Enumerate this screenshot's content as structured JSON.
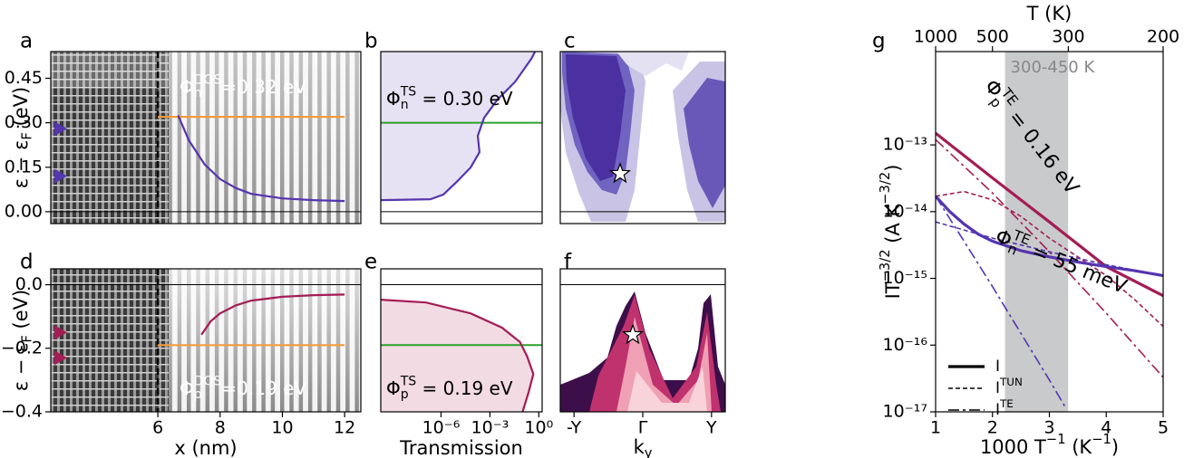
{
  "chart_data": [
    {
      "type": "line",
      "panel_label": "a",
      "ylabel": [
        {
          "text": "ε − ε"
        },
        {
          "sub": "F"
        },
        {
          "text": " (eV)"
        }
      ],
      "xlim": [
        2.56,
        12.52
      ],
      "ylim": [
        -0.04,
        0.54
      ],
      "yticks": [
        {
          "value": 0,
          "label": "0.00"
        },
        0.15,
        {
          "value": 0.3,
          "label": "0.30"
        },
        0.45
      ],
      "zero_line": 0,
      "vline": 6,
      "markers": [
        0.28,
        0.12
      ],
      "marker_color": "#5535b0",
      "series": [
        {
          "color": "#f39c3c",
          "dash": "solid",
          "x": [
            6,
            12
          ],
          "values": [
            0.32,
            0.32
          ]
        },
        {
          "color": "#5535b0",
          "dash": "solid",
          "x": [
            6.65,
            7,
            7.5,
            8,
            8.5,
            9,
            10,
            11,
            12
          ],
          "values": [
            0.325,
            0.24,
            0.16,
            0.11,
            0.08,
            0.06,
            0.045,
            0.039,
            0.036
          ]
        }
      ],
      "annotations": [
        [
          {
            "text": "Φ"
          },
          {
            "sub": "n"
          },
          {
            "sup": "DOS"
          },
          {
            "text": "=0.32 eV"
          }
        ]
      ]
    },
    {
      "type": "area",
      "panel_label": "b",
      "xlog": true,
      "xlim": [
        2e-10,
        1.6
      ],
      "ylim": [
        -0.04,
        0.54
      ],
      "zero_line": 0,
      "hline": 0.3,
      "hline_color": "#2ca02c",
      "fill_color": "#e6e2f3",
      "series": [
        {
          "color": "#5535b0",
          "dash": "solid",
          "x": [
            2e-10,
            2.2e-07,
            1.4e-06,
            1e-05,
            6.5e-05,
            0.00023,
            0.00018,
            0.00044,
            0.0029,
            0.036,
            0.35,
            0.59
          ],
          "values": [
            0.039,
            0.042,
            0.058,
            0.103,
            0.149,
            0.201,
            0.256,
            0.317,
            0.378,
            0.439,
            0.516,
            0.54
          ]
        }
      ],
      "annotations": [
        [
          {
            "text": "Φ"
          },
          {
            "sub": "n"
          },
          {
            "sup": "TS"
          },
          {
            "text": " = 0.30 eV"
          }
        ]
      ]
    },
    {
      "type": "heatmap",
      "panel_label": "c",
      "xlim": [
        -1.2,
        1.2
      ],
      "ylim": [
        -0.04,
        0.54
      ],
      "zero_line": 0,
      "points": {
        "x": [
          -0.33
        ],
        "values": [
          0.128
        ]
      }
    },
    {
      "type": "line",
      "panel_label": "d",
      "ylabel": [
        {
          "text": "ε − ε"
        },
        {
          "sub": "F"
        },
        {
          "text": " (eV)"
        }
      ],
      "xlabel": "x (nm)",
      "xlim": [
        2.56,
        12.52
      ],
      "ylim": [
        -0.4,
        0.05
      ],
      "xticks": [
        6,
        8,
        10,
        12
      ],
      "yticks": [
        {
          "value": 0,
          "label": "0.0"
        },
        {
          "value": -0.2,
          "label": "−0.2"
        },
        {
          "value": -0.4,
          "label": "−0.4"
        }
      ],
      "zero_line": 0,
      "vline": 6,
      "markers": [
        -0.15,
        -0.23
      ],
      "marker_color": "#a41c55",
      "series": [
        {
          "color": "#f39c3c",
          "dash": "solid",
          "x": [
            6,
            12
          ],
          "values": [
            -0.19,
            -0.19
          ]
        },
        {
          "color": "#a41c55",
          "dash": "solid",
          "x": [
            7.4,
            7.7,
            8,
            8.5,
            9,
            10,
            11,
            12
          ],
          "values": [
            -0.157,
            -0.115,
            -0.09,
            -0.065,
            -0.05,
            -0.038,
            -0.033,
            -0.031
          ]
        }
      ],
      "annotations": [
        [
          {
            "text": "Φ"
          },
          {
            "sub": "p"
          },
          {
            "sup": "DOS"
          },
          {
            "text": "=0.19 eV"
          }
        ]
      ]
    },
    {
      "type": "area",
      "panel_label": "e",
      "xlabel": "Transmission",
      "xlog": true,
      "xlim": [
        2e-10,
        1.6
      ],
      "ylim": [
        -0.4,
        0.05
      ],
      "xticks": [
        {
          "value": 1e-06,
          "label": "10⁻⁶"
        },
        {
          "value": 0.001,
          "label": "10⁻³"
        },
        {
          "value": 1,
          "label": "10⁰"
        }
      ],
      "zero_line": 0,
      "hline": -0.19,
      "hline_color": "#2ca02c",
      "fill_color": "#f3dbe3",
      "series": [
        {
          "color": "#a41c55",
          "dash": "solid",
          "x": [
            2e-10,
            1.2e-07,
            6.5e-05,
            0.0055,
            0.069,
            0.19,
            0.46,
            0.24,
            0.1
          ],
          "values": [
            -0.047,
            -0.056,
            -0.09,
            -0.135,
            -0.18,
            -0.225,
            -0.281,
            -0.337,
            -0.4
          ]
        }
      ],
      "annotations": [
        [
          {
            "text": "Φ"
          },
          {
            "sub": "p"
          },
          {
            "sup": "TS"
          },
          {
            "text": " = 0.19 eV"
          }
        ]
      ]
    },
    {
      "type": "heatmap",
      "panel_label": "f",
      "xlabel": [
        {
          "text": "k"
        },
        {
          "sub": "y"
        }
      ],
      "xlim": [
        -1.2,
        1.2
      ],
      "ylim": [
        -0.4,
        0.05
      ],
      "zero_line": 0,
      "xticks": [
        {
          "value": -1,
          "label": "-Y"
        },
        {
          "value": 0,
          "label": "Γ"
        },
        {
          "value": 1,
          "label": "Y"
        }
      ],
      "points": {
        "x": [
          -0.145
        ],
        "values": [
          -0.158
        ]
      }
    },
    {
      "type": "line",
      "panel_label": "g",
      "ylabel": [
        {
          "text": "IT"
        },
        {
          "sup": "−3/2"
        },
        {
          "text": " (A K"
        },
        {
          "sup": "−3/2"
        },
        {
          "text": ")"
        }
      ],
      "xlabel": [
        {
          "text": "1000 T"
        },
        {
          "sup": "−1"
        },
        {
          "text": " (K"
        },
        {
          "sup": "−1"
        },
        {
          "text": ")"
        }
      ],
      "x2label": "T (K)",
      "x2ticks": [
        1000,
        500,
        300,
        200
      ],
      "xlim": [
        1,
        5
      ],
      "ylim": [
        1e-17,
        2.5e-12
      ],
      "ylog": true,
      "xticks": [
        1,
        2,
        3,
        4,
        5
      ],
      "yticks": [
        {
          "value": 1e-17,
          "label": "10⁻¹⁷"
        },
        {
          "value": 1e-16,
          "label": "10⁻¹⁶"
        },
        {
          "value": 1e-15,
          "label": "10⁻¹⁵"
        },
        {
          "value": 1e-14,
          "label": "10⁻¹⁴"
        },
        {
          "value": 1e-13,
          "label": "10⁻¹³"
        }
      ],
      "band": [
        2.22,
        3.33
      ],
      "band_label": "300-450 K",
      "band_color": "#c9cacb",
      "series": [
        {
          "color": "#a41c55",
          "dash": "solid",
          "x": [
            1,
            2,
            3,
            4,
            5
          ],
          "values": [
            1.5e-13,
            3.2e-14,
            7e-15,
            1.5e-15,
            5.5e-16
          ]
        },
        {
          "color": "#a41c55",
          "dash": "dashed",
          "x": [
            1,
            1.5,
            2,
            2.5,
            3,
            3.5,
            4,
            4.5,
            5
          ],
          "values": [
            1.7e-14,
            2e-14,
            1.5e-14,
            8.5e-15,
            4e-15,
            2.1e-15,
            1.1e-15,
            4.8e-16,
            1.9e-16
          ]
        },
        {
          "color": "#a41c55",
          "dash": "dashdot",
          "x": [
            1,
            2,
            3,
            4,
            5
          ],
          "values": [
            1.2e-13,
            1.9e-14,
            2.5e-15,
            3e-16,
            3.3e-17
          ]
        },
        {
          "color": "#5535b0",
          "dash": "solid",
          "x": [
            1,
            1.25,
            1.5,
            1.75,
            2,
            2.5,
            3,
            3.5,
            4,
            4.5,
            5
          ],
          "values": [
            1.7e-14,
            1e-14,
            6.5e-15,
            4.6e-15,
            3.6e-15,
            2.6e-15,
            2.1e-15,
            1.75e-15,
            1.5e-15,
            1.3e-15,
            1.1e-15
          ]
        },
        {
          "color": "#5535b0",
          "dash": "dashed",
          "x": [
            1,
            2,
            3,
            4,
            5
          ],
          "values": [
            7e-15,
            4e-15,
            2.5e-15,
            1.6e-15,
            1.1e-15
          ]
        },
        {
          "color": "#5535b0",
          "dash": "dashdot",
          "x": [
            1,
            1.5,
            2,
            2.5,
            3,
            3.3
          ],
          "values": [
            1.7e-14,
            3.6e-15,
            7.5e-16,
            1.5e-16,
            3e-17,
            1.1e-17
          ]
        }
      ],
      "legend_color": "#000000",
      "legend": [
        {
          "label": [
            {
              "text": "I"
            }
          ],
          "dash": "solid"
        },
        {
          "label": [
            {
              "text": "I"
            },
            {
              "sup": "TUN"
            }
          ],
          "dash": "dashed"
        },
        {
          "label": [
            {
              "text": "I"
            },
            {
              "sup": "TE"
            }
          ],
          "dash": "dashdot"
        }
      ],
      "annotations": [
        [
          {
            "text": "Φ"
          },
          {
            "sub": "p"
          },
          {
            "sup": "TE"
          },
          {
            "text": " = 0.16 eV"
          }
        ],
        [
          {
            "text": "Φ"
          },
          {
            "sub": "n"
          },
          {
            "sup": "TE"
          },
          {
            "text": " = 55 meV"
          }
        ]
      ]
    }
  ]
}
